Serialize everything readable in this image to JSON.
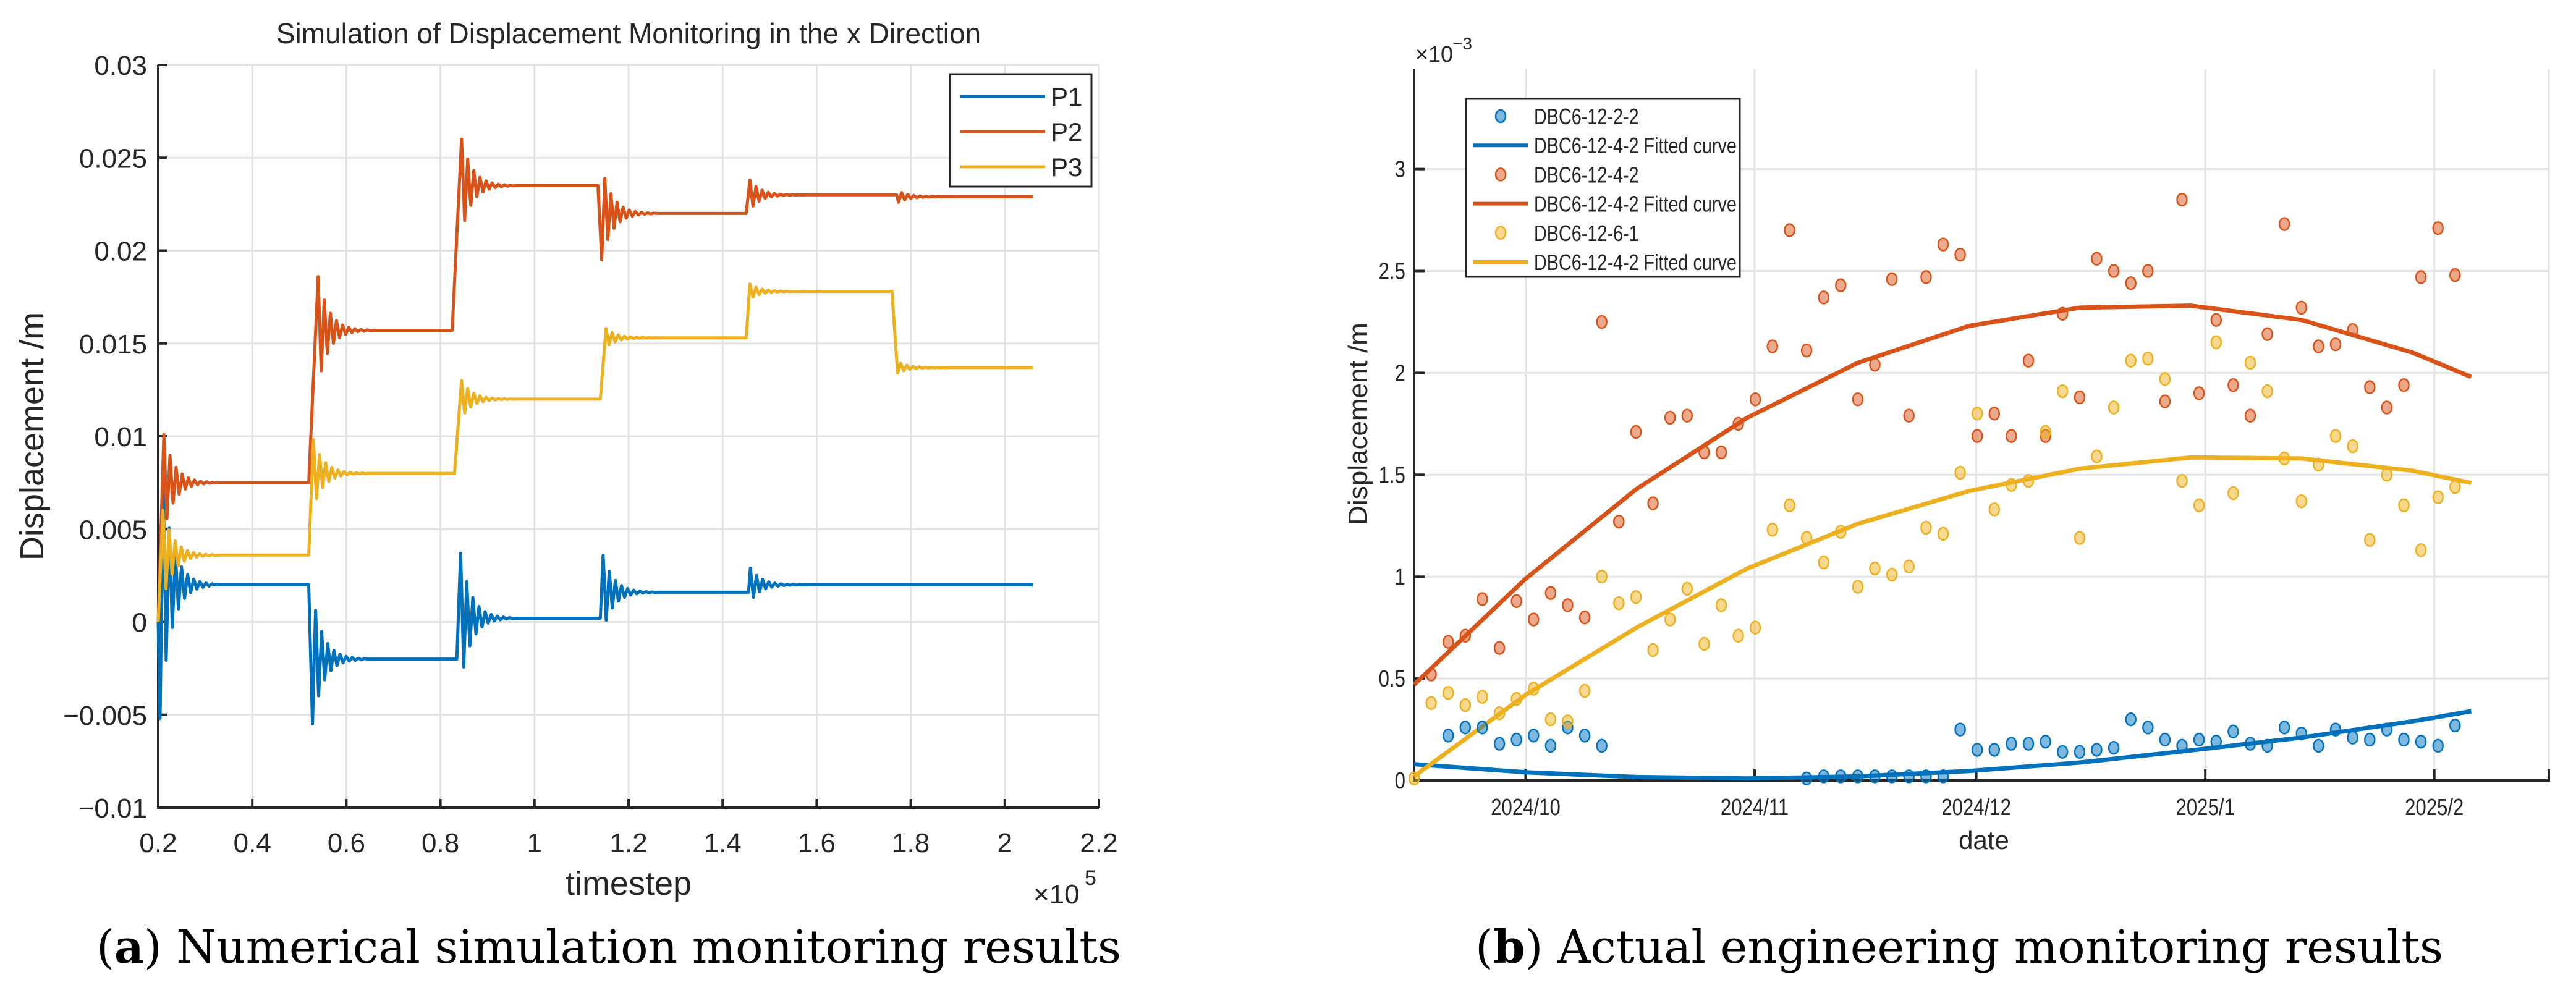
{
  "captions": {
    "a": {
      "label": "a",
      "text": " Numerical simulation monitoring results"
    },
    "b": {
      "label": "b",
      "text": " Actual engineering monitoring results"
    }
  },
  "chart_data": [
    {
      "type": "line",
      "title": "Simulation of Displacement Monitoring in the x Direction",
      "xlabel": "timestep",
      "ylabel": "Displacement /m",
      "x_multiplier": "×10",
      "x_multiplier_exp": "5",
      "xlim": [
        0.2,
        2.2
      ],
      "ylim": [
        -0.01,
        0.03
      ],
      "xticks": [
        0.2,
        0.4,
        0.6,
        0.8,
        1,
        1.2,
        1.4,
        1.6,
        1.8,
        2,
        2.2
      ],
      "xtick_labels": [
        "0.2",
        "0.4",
        "0.6",
        "0.8",
        "1",
        "1.2",
        "1.4",
        "1.6",
        "1.8",
        "2",
        "2.2"
      ],
      "yticks": [
        -0.01,
        -0.005,
        0,
        0.005,
        0.01,
        0.015,
        0.02,
        0.025,
        0.03
      ],
      "ytick_labels": [
        "−0.01",
        "−0.005",
        "0",
        "0.005",
        "0.01",
        "0.015",
        "0.02",
        "0.025",
        "0.03"
      ],
      "grid": true,
      "legend_position": "top-right",
      "series": [
        {
          "name": "P1",
          "color": "#0072BD",
          "x_end": 2.06,
          "start_level": 0,
          "steps": [
            {
              "t": 0.2,
              "level": 0.002,
              "peak": -0.0052,
              "rise": 0.004
            },
            {
              "t": 0.52,
              "level": -0.002,
              "peak": -0.0055,
              "rise": 0.008
            },
            {
              "t": 0.835,
              "level": 0.0002,
              "peak": 0.0037,
              "rise": 0.008
            },
            {
              "t": 1.14,
              "level": 0.0016,
              "peak": 0.0036,
              "rise": 0.006
            },
            {
              "t": 1.455,
              "level": 0.002,
              "peak": 0.0029,
              "rise": 0.004
            }
          ]
        },
        {
          "name": "P2",
          "color": "#D95319",
          "x_end": 2.06,
          "start_level": 0,
          "steps": [
            {
              "t": 0.2,
              "level": 0.0075,
              "peak": 0.0101,
              "rise": 0.012
            },
            {
              "t": 0.52,
              "level": 0.0157,
              "peak": 0.0186,
              "rise": 0.02
            },
            {
              "t": 0.825,
              "level": 0.0235,
              "peak": 0.026,
              "rise": 0.02
            },
            {
              "t": 1.135,
              "level": 0.022,
              "peak": 0.0195,
              "rise": 0.008
            },
            {
              "t": 1.45,
              "level": 0.023,
              "peak": 0.0238,
              "rise": 0.008
            },
            {
              "t": 1.77,
              "level": 0.0229,
              "peak": 0.0226,
              "rise": 0.004
            }
          ]
        },
        {
          "name": "P3",
          "color": "#EDB120",
          "x_end": 2.06,
          "start_level": 0,
          "steps": [
            {
              "t": 0.2,
              "level": 0.0036,
              "peak": 0.006,
              "rise": 0.01
            },
            {
              "t": 0.52,
              "level": 0.008,
              "peak": 0.0098,
              "rise": 0.01
            },
            {
              "t": 0.83,
              "level": 0.012,
              "peak": 0.013,
              "rise": 0.015
            },
            {
              "t": 1.14,
              "level": 0.0153,
              "peak": 0.0158,
              "rise": 0.012
            },
            {
              "t": 1.45,
              "level": 0.0178,
              "peak": 0.0182,
              "rise": 0.008
            },
            {
              "t": 1.76,
              "level": 0.0137,
              "peak": 0.0134,
              "rise": 0.012
            }
          ]
        }
      ]
    },
    {
      "type": "scatter",
      "title": "",
      "xlabel": "date",
      "ylabel": "Displacement /m",
      "y_multiplier": "×10",
      "y_multiplier_exp": "−3",
      "x_unit": "days since 2024/10/1",
      "xlim": [
        -15.1,
        138.5
      ],
      "ylim": [
        0,
        3.49
      ],
      "xticks": [
        0,
        31,
        61,
        92,
        123
      ],
      "xtick_labels": [
        "2024/10",
        "2024/11",
        "2024/12",
        "2025/1",
        "2025/2"
      ],
      "yticks": [
        0,
        0.5,
        1,
        1.5,
        2,
        2.5,
        3
      ],
      "ytick_labels": [
        "0",
        "0.5",
        "1",
        "1.5",
        "2",
        "2.5",
        "3"
      ],
      "grid": true,
      "legend_position": "top-left",
      "x_start": -15.1,
      "x_step_days": 2.31,
      "series": [
        {
          "name": "DBC6-12-2-2",
          "kind": "scatter",
          "color": "#0072BD",
          "values": [
            null,
            null,
            0.22,
            0.26,
            0.26,
            0.18,
            0.2,
            0.22,
            0.17,
            0.26,
            0.22,
            0.17,
            null,
            null,
            null,
            null,
            null,
            null,
            null,
            null,
            null,
            null,
            null,
            0.01,
            0.02,
            0.02,
            0.02,
            0.02,
            0.02,
            0.02,
            0.02,
            0.02,
            0.25,
            0.15,
            0.15,
            0.18,
            0.18,
            0.19,
            0.14,
            0.14,
            0.15,
            0.16,
            0.3,
            0.26,
            0.2,
            0.17,
            0.2,
            0.19,
            0.24,
            0.18,
            0.17,
            0.26,
            0.23,
            0.17,
            0.25,
            0.21,
            0.2,
            0.25,
            0.2,
            0.19,
            0.17,
            0.27
          ]
        },
        {
          "name": "DBC6-12-4-2 Fitted curve",
          "kind": "fit",
          "color": "#0072BD",
          "x": [
            -15.1,
            0,
            15,
            30,
            45,
            60,
            75,
            90,
            105,
            120,
            128
          ],
          "y": [
            0.08,
            0.04,
            0.017,
            0.01,
            0.02,
            0.046,
            0.088,
            0.147,
            0.21,
            0.29,
            0.34
          ]
        },
        {
          "name": "DBC6-12-4-2",
          "kind": "scatter",
          "color": "#D95319",
          "values": [
            null,
            0.52,
            0.68,
            0.71,
            0.89,
            0.65,
            0.88,
            0.79,
            0.92,
            0.86,
            0.8,
            2.25,
            1.27,
            1.71,
            1.36,
            1.78,
            1.79,
            1.61,
            1.61,
            1.75,
            1.87,
            2.13,
            2.7,
            2.11,
            2.37,
            2.43,
            1.87,
            2.04,
            2.46,
            1.79,
            2.47,
            2.63,
            2.58,
            1.69,
            1.8,
            1.69,
            2.06,
            1.69,
            2.29,
            1.88,
            2.56,
            2.5,
            2.44,
            2.5,
            1.86,
            2.85,
            1.9,
            2.26,
            1.94,
            1.79,
            2.19,
            2.73,
            2.32,
            2.13,
            2.14,
            2.21,
            1.93,
            1.83,
            1.94,
            2.47,
            2.71,
            2.48
          ]
        },
        {
          "name": "DBC6-12-4-2 Fitted curve",
          "kind": "fit",
          "color": "#D95319",
          "x": [
            -15.1,
            0,
            15,
            30,
            45,
            60,
            75,
            90,
            105,
            120,
            128
          ],
          "y": [
            0.47,
            0.99,
            1.43,
            1.78,
            2.05,
            2.23,
            2.32,
            2.33,
            2.26,
            2.1,
            1.98
          ]
        },
        {
          "name": "DBC6-12-6-1",
          "kind": "scatter",
          "color": "#EDB120",
          "values": [
            0.01,
            0.38,
            0.43,
            0.37,
            0.41,
            0.33,
            0.4,
            0.45,
            0.3,
            0.29,
            0.44,
            1.0,
            0.87,
            0.9,
            0.64,
            0.79,
            0.94,
            0.67,
            0.86,
            0.71,
            0.75,
            1.23,
            1.35,
            1.19,
            1.07,
            1.22,
            0.95,
            1.04,
            1.01,
            1.05,
            1.24,
            1.21,
            1.51,
            1.8,
            1.33,
            1.45,
            1.47,
            1.71,
            1.91,
            1.19,
            1.59,
            1.83,
            2.06,
            2.07,
            1.97,
            1.47,
            1.35,
            2.15,
            1.41,
            2.05,
            1.91,
            1.58,
            1.37,
            1.55,
            1.69,
            1.64,
            1.18,
            1.5,
            1.35,
            1.13,
            1.39,
            1.44
          ]
        },
        {
          "name": "DBC6-12-4-2 Fitted curve",
          "kind": "fit",
          "color": "#EDB120",
          "x": [
            -15.1,
            0,
            15,
            30,
            45,
            60,
            75,
            90,
            105,
            120,
            128
          ],
          "y": [
            0.02,
            0.42,
            0.75,
            1.04,
            1.26,
            1.42,
            1.53,
            1.585,
            1.58,
            1.52,
            1.46
          ]
        }
      ]
    }
  ]
}
